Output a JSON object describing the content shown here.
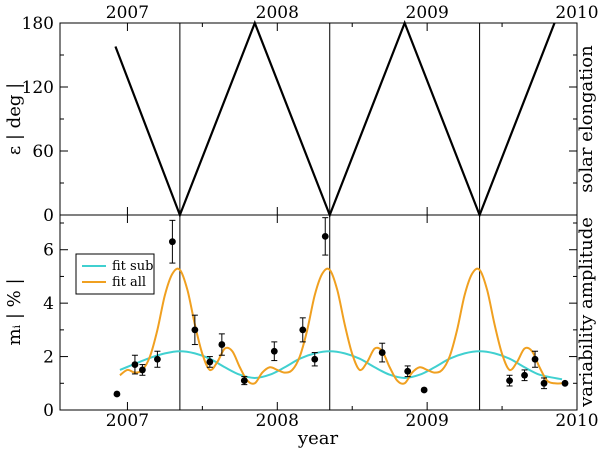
{
  "chart_data": [
    {
      "type": "line",
      "panel": "top",
      "ylabel": "ε | deg |",
      "right_label": "solar elongation",
      "top_ticks": [
        "2007",
        "2008",
        "2009",
        "2010"
      ],
      "xlim": [
        2006.55,
        2010.0
      ],
      "ylim": [
        0,
        180
      ],
      "yticks": [
        0,
        60,
        120,
        180
      ],
      "grid": false,
      "series": [
        {
          "color": "#000000",
          "x": [
            2006.92,
            2007.35,
            2007.85,
            2008.35,
            2008.85,
            2009.35,
            2009.85
          ],
          "y": [
            158,
            0,
            180,
            0,
            180,
            0,
            180
          ]
        }
      ]
    },
    {
      "type": "line",
      "panel": "bottom",
      "xlabel": "year",
      "ylabel": "mᵢ | % |",
      "right_label": "variability amplitude",
      "xlim": [
        2006.55,
        2010.0
      ],
      "ylim": [
        0,
        7.3
      ],
      "xticks": [
        "2007",
        "2008",
        "2009",
        "2010"
      ],
      "yticks": [
        0,
        2,
        4,
        6
      ],
      "grid": false,
      "legend": {
        "placement": "left",
        "entries": [
          {
            "label": "fit sub",
            "color": "#40d0d0"
          },
          {
            "label": "fit all",
            "color": "#f0a020"
          }
        ]
      },
      "fit_sub": {
        "color": "#40d0d0",
        "x": [
          2006.95,
          2007.05,
          2007.15,
          2007.25,
          2007.35,
          2007.45,
          2007.55,
          2007.65,
          2007.75,
          2007.85,
          2007.95,
          2008.05,
          2008.15,
          2008.25,
          2008.35,
          2008.45,
          2008.55,
          2008.65,
          2008.75,
          2008.85,
          2008.95,
          2009.05,
          2009.15,
          2009.25,
          2009.35,
          2009.45,
          2009.55,
          2009.65,
          2009.75,
          2009.85,
          2009.9
        ],
        "y": [
          1.5,
          1.73,
          1.95,
          2.12,
          2.2,
          2.12,
          1.92,
          1.6,
          1.32,
          1.2,
          1.32,
          1.6,
          1.92,
          2.12,
          2.2,
          2.12,
          1.92,
          1.6,
          1.32,
          1.2,
          1.32,
          1.6,
          1.92,
          2.12,
          2.2,
          2.12,
          1.92,
          1.6,
          1.32,
          1.2,
          1.15
        ]
      },
      "fit_all": {
        "color": "#f0a020",
        "x": [
          2006.95,
          2007.0,
          2007.05,
          2007.1,
          2007.15,
          2007.2,
          2007.25,
          2007.3,
          2007.35,
          2007.4,
          2007.45,
          2007.5,
          2007.55,
          2007.6,
          2007.65,
          2007.7,
          2007.75,
          2007.8,
          2007.85,
          2007.9,
          2007.95,
          2008.0,
          2008.05,
          2008.1,
          2008.15,
          2008.2,
          2008.25,
          2008.3,
          2008.35,
          2008.4,
          2008.45,
          2008.5,
          2008.55,
          2008.6,
          2008.65,
          2008.7,
          2008.75,
          2008.8,
          2008.85,
          2008.9,
          2008.95,
          2009.0,
          2009.05,
          2009.1,
          2009.15,
          2009.2,
          2009.25,
          2009.3,
          2009.35,
          2009.4,
          2009.45,
          2009.5,
          2009.55,
          2009.6,
          2009.65,
          2009.7,
          2009.75,
          2009.8,
          2009.85,
          2009.9
        ],
        "y": [
          1.3,
          1.5,
          1.4,
          1.5,
          2.0,
          3.0,
          4.3,
          5.1,
          5.25,
          4.5,
          3.2,
          2.1,
          1.5,
          1.8,
          2.3,
          2.2,
          1.6,
          1.1,
          1.0,
          1.4,
          1.6,
          1.5,
          1.4,
          1.5,
          2.0,
          3.0,
          4.3,
          5.1,
          5.25,
          4.5,
          3.2,
          2.1,
          1.5,
          1.8,
          2.3,
          2.2,
          1.6,
          1.1,
          1.0,
          1.4,
          1.6,
          1.5,
          1.4,
          1.5,
          2.0,
          3.0,
          4.3,
          5.1,
          5.25,
          4.5,
          3.2,
          2.1,
          1.5,
          1.8,
          2.3,
          2.2,
          1.6,
          1.1,
          1.0,
          1.0
        ]
      },
      "points": [
        {
          "x": 2006.93,
          "y": 0.6,
          "err": 0
        },
        {
          "x": 2007.05,
          "y": 1.7,
          "err": 0.35
        },
        {
          "x": 2007.1,
          "y": 1.5,
          "err": 0.2
        },
        {
          "x": 2007.2,
          "y": 1.9,
          "err": 0.3
        },
        {
          "x": 2007.3,
          "y": 6.3,
          "err": 0.8
        },
        {
          "x": 2007.45,
          "y": 3.0,
          "err": 0.55
        },
        {
          "x": 2007.55,
          "y": 1.8,
          "err": 0.2
        },
        {
          "x": 2007.63,
          "y": 2.45,
          "err": 0.4
        },
        {
          "x": 2007.78,
          "y": 1.1,
          "err": 0.15
        },
        {
          "x": 2007.98,
          "y": 2.2,
          "err": 0.35
        },
        {
          "x": 2008.17,
          "y": 3.0,
          "err": 0.45
        },
        {
          "x": 2008.25,
          "y": 1.9,
          "err": 0.25
        },
        {
          "x": 2008.32,
          "y": 6.5,
          "err": 0.7
        },
        {
          "x": 2008.7,
          "y": 2.15,
          "err": 0.35
        },
        {
          "x": 2008.87,
          "y": 1.45,
          "err": 0.2
        },
        {
          "x": 2008.98,
          "y": 0.75,
          "err": 0
        },
        {
          "x": 2009.55,
          "y": 1.1,
          "err": 0.2
        },
        {
          "x": 2009.65,
          "y": 1.3,
          "err": 0.2
        },
        {
          "x": 2009.72,
          "y": 1.9,
          "err": 0.3
        },
        {
          "x": 2009.78,
          "y": 1.0,
          "err": 0.2
        },
        {
          "x": 2009.92,
          "y": 1.0,
          "err": 0
        }
      ]
    }
  ],
  "vertical_lines": [
    2007.35,
    2008.35,
    2009.35
  ]
}
